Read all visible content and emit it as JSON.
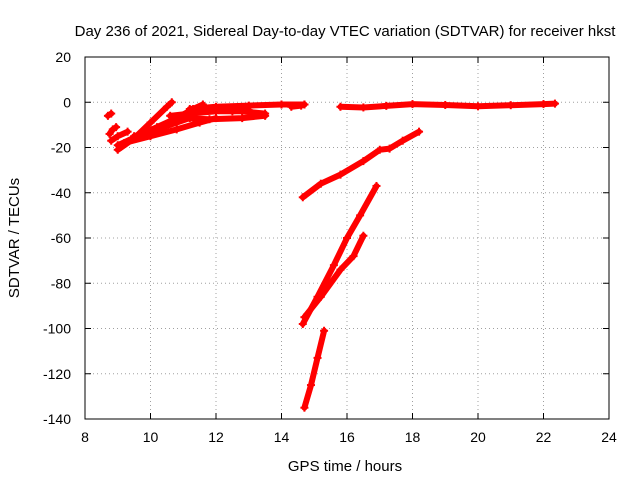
{
  "chart_data": {
    "type": "scatter",
    "title": "Day 236 of 2021, Sidereal Day-to-day VTEC variation (SDTVAR) for receiver hkst",
    "xlabel": "GPS time / hours",
    "ylabel": "SDTVAR / TECUs",
    "xlim": [
      8,
      24
    ],
    "ylim": [
      -140,
      20
    ],
    "xticks": [
      8,
      10,
      12,
      14,
      16,
      18,
      20,
      22,
      24
    ],
    "yticks": [
      -140,
      -120,
      -100,
      -80,
      -60,
      -40,
      -20,
      0,
      20
    ],
    "grid": true,
    "color": "#ff0000",
    "series": [
      {
        "name": "track-1",
        "points": [
          [
            8.7,
            -6
          ],
          [
            8.8,
            -5
          ]
        ]
      },
      {
        "name": "track-2",
        "points": [
          [
            8.75,
            -14
          ],
          [
            8.85,
            -12
          ],
          [
            8.95,
            -11
          ]
        ]
      },
      {
        "name": "track-3",
        "points": [
          [
            8.8,
            -17
          ],
          [
            9.0,
            -15
          ],
          [
            9.3,
            -13
          ]
        ]
      },
      {
        "name": "track-4",
        "points": [
          [
            9.0,
            -21
          ],
          [
            9.5,
            -16
          ],
          [
            10.0,
            -9
          ],
          [
            10.5,
            -2
          ],
          [
            10.65,
            0
          ]
        ]
      },
      {
        "name": "track-5",
        "points": [
          [
            9.0,
            -19
          ],
          [
            9.6,
            -15
          ],
          [
            10.2,
            -11
          ],
          [
            10.8,
            -7
          ],
          [
            11.3,
            -3
          ],
          [
            11.6,
            -1
          ]
        ]
      },
      {
        "name": "track-6",
        "points": [
          [
            9.2,
            -18
          ],
          [
            10.0,
            -15
          ],
          [
            10.8,
            -12
          ],
          [
            11.5,
            -9
          ],
          [
            12.0,
            -7
          ]
        ]
      },
      {
        "name": "track-7",
        "points": [
          [
            9.5,
            -15
          ],
          [
            10.2,
            -12
          ],
          [
            10.8,
            -9
          ],
          [
            11.2,
            -7
          ]
        ]
      },
      {
        "name": "track-8",
        "points": [
          [
            10.6,
            -6
          ],
          [
            11.2,
            -5
          ],
          [
            12.0,
            -4
          ],
          [
            12.8,
            -4
          ],
          [
            13.5,
            -5
          ]
        ]
      },
      {
        "name": "track-9",
        "points": [
          [
            11.2,
            -3
          ],
          [
            12.0,
            -2
          ],
          [
            13.0,
            -1.5
          ],
          [
            14.0,
            -1
          ],
          [
            14.7,
            -1
          ]
        ]
      },
      {
        "name": "track-10",
        "points": [
          [
            11.0,
            -7
          ],
          [
            11.8,
            -7.5
          ],
          [
            12.8,
            -7
          ],
          [
            13.5,
            -6
          ]
        ]
      },
      {
        "name": "track-11",
        "points": [
          [
            11.3,
            -4
          ],
          [
            11.8,
            -3
          ],
          [
            12.5,
            -4
          ],
          [
            13.0,
            -3.5
          ]
        ]
      },
      {
        "name": "track-12",
        "points": [
          [
            14.3,
            -2
          ],
          [
            14.6,
            -1.5
          ],
          [
            14.7,
            -1
          ]
        ]
      },
      {
        "name": "track-13",
        "points": [
          [
            15.8,
            -2
          ],
          [
            16.5,
            -2.3
          ],
          [
            17.2,
            -1.6
          ],
          [
            18.0,
            -0.8
          ],
          [
            19.0,
            -1.2
          ],
          [
            20.0,
            -1.8
          ],
          [
            21.0,
            -1.3
          ],
          [
            22.0,
            -0.8
          ],
          [
            22.35,
            -0.6
          ]
        ]
      },
      {
        "name": "track-14",
        "points": [
          [
            14.65,
            -42
          ],
          [
            15.2,
            -36
          ],
          [
            15.8,
            -32
          ],
          [
            16.5,
            -26
          ],
          [
            17.0,
            -21
          ],
          [
            17.3,
            -20.5
          ],
          [
            17.7,
            -17
          ],
          [
            18.2,
            -13
          ]
        ]
      },
      {
        "name": "track-15",
        "points": [
          [
            14.65,
            -98
          ],
          [
            15.1,
            -86
          ],
          [
            15.6,
            -72
          ],
          [
            16.0,
            -60
          ],
          [
            16.4,
            -50
          ],
          [
            16.9,
            -37
          ]
        ]
      },
      {
        "name": "track-16",
        "points": [
          [
            14.7,
            -95
          ],
          [
            15.2,
            -86
          ],
          [
            15.8,
            -74
          ],
          [
            16.2,
            -68
          ],
          [
            16.5,
            -59
          ]
        ]
      },
      {
        "name": "track-17",
        "points": [
          [
            14.7,
            -135
          ],
          [
            14.9,
            -125
          ],
          [
            15.1,
            -113
          ],
          [
            15.3,
            -101
          ]
        ]
      }
    ]
  }
}
